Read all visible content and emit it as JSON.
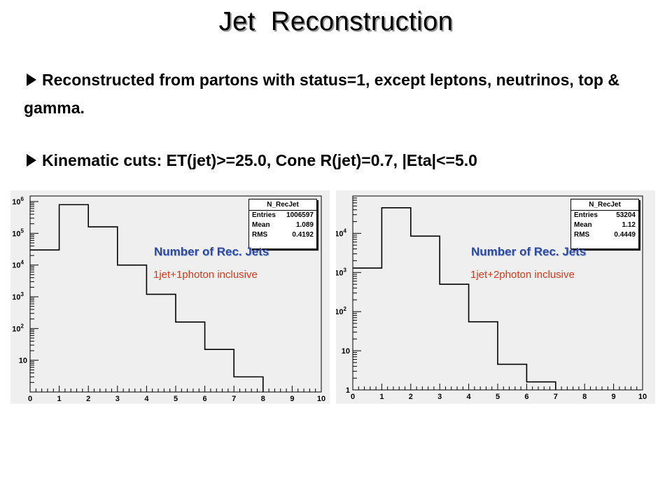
{
  "slide": {
    "title": "Jet  Reconstruction",
    "bullets": [
      "Reconstructed from partons with status=1, except leptons, neutrinos, top & gamma.",
      "Kinematic cuts: ET(jet)>=25.0, Cone R(jet)=0.7, |Eta|<=5.0"
    ]
  },
  "chart_data": [
    {
      "type": "histogram",
      "title": "N_RecJet",
      "stats": {
        "entries_label": "Entries",
        "entries": "1006597",
        "mean_label": "Mean",
        "mean": "1.089",
        "rms_label": "RMS",
        "rms": "0.4192"
      },
      "legend_title": "Number of Rec. Jets",
      "legend_subtitle": "1jet+1photon inclusive",
      "xlim": [
        0,
        10
      ],
      "x_ticks": [
        "0",
        "1",
        "2",
        "3",
        "4",
        "5",
        "6",
        "7",
        "8",
        "9",
        "10"
      ],
      "y_scale": "log",
      "ylim": [
        1,
        1500000
      ],
      "y_ticks": [
        {
          "value": 10,
          "label": "10",
          "exp": ""
        },
        {
          "value": 100,
          "label": "10",
          "exp": "2"
        },
        {
          "value": 1000,
          "label": "10",
          "exp": "3"
        },
        {
          "value": 10000,
          "label": "10",
          "exp": "4"
        },
        {
          "value": 100000,
          "label": "10",
          "exp": "5"
        },
        {
          "value": 1000000,
          "label": "10",
          "exp": "6"
        }
      ],
      "bin_edges": [
        0,
        1,
        2,
        3,
        4,
        5,
        6,
        7,
        8
      ],
      "values": [
        30000,
        800000,
        160000,
        10000,
        1200,
        160,
        22,
        3
      ]
    },
    {
      "type": "histogram",
      "title": "N_RecJet",
      "stats": {
        "entries_label": "Entries",
        "entries": "53204",
        "mean_label": "Mean",
        "mean": "1.12",
        "rms_label": "RMS",
        "rms": "0.4449"
      },
      "legend_title": "Number of Rec. Jets",
      "legend_subtitle": "1jet+2photon inclusive",
      "xlim": [
        0,
        10
      ],
      "x_ticks": [
        "0",
        "1",
        "2",
        "3",
        "4",
        "5",
        "6",
        "7",
        "8",
        "9",
        "10"
      ],
      "y_scale": "log",
      "ylim": [
        1,
        90000
      ],
      "y_ticks": [
        {
          "value": 1,
          "label": "1",
          "exp": ""
        },
        {
          "value": 10,
          "label": "10",
          "exp": ""
        },
        {
          "value": 100,
          "label": "10",
          "exp": "2"
        },
        {
          "value": 1000,
          "label": "10",
          "exp": "3"
        },
        {
          "value": 10000,
          "label": "10",
          "exp": "4"
        }
      ],
      "bin_edges": [
        0,
        1,
        2,
        3,
        4,
        5,
        6,
        7
      ],
      "values": [
        1300,
        45000,
        8500,
        500,
        55,
        4.5,
        1.6
      ]
    }
  ]
}
